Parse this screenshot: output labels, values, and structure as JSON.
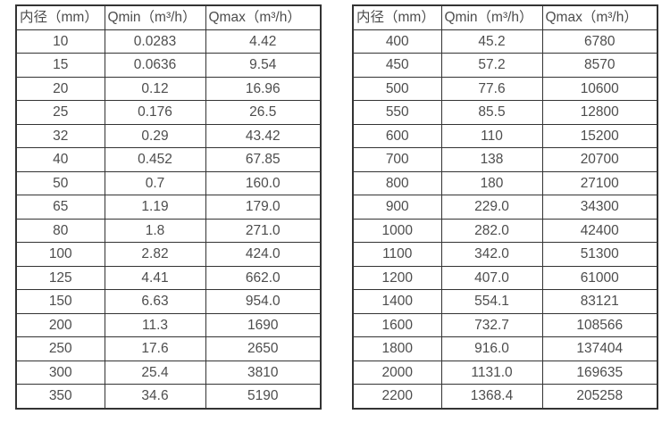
{
  "page": {
    "description": "Flow meter diameter vs minimum and maximum flow rate specification tables",
    "background": "#ffffff"
  },
  "colors": {
    "border": "#333333",
    "text": "#4d4d4d"
  },
  "tables": [
    {
      "name": "small-diameter-flow-table",
      "headers": [
        "内径（mm）",
        "Qmin（m³/h）",
        "Qmax（m³/h）"
      ],
      "rows": [
        [
          "10",
          "0.0283",
          "4.42"
        ],
        [
          "15",
          "0.0636",
          "9.54"
        ],
        [
          "20",
          "0.12",
          "16.96"
        ],
        [
          "25",
          "0.176",
          "26.5"
        ],
        [
          "32",
          "0.29",
          "43.42"
        ],
        [
          "40",
          "0.452",
          "67.85"
        ],
        [
          "50",
          "0.7",
          "160.0"
        ],
        [
          "65",
          "1.19",
          "179.0"
        ],
        [
          "80",
          "1.8",
          "271.0"
        ],
        [
          "100",
          "2.82",
          "424.0"
        ],
        [
          "125",
          "4.41",
          "662.0"
        ],
        [
          "150",
          "6.63",
          "954.0"
        ],
        [
          "200",
          "11.3",
          "1690"
        ],
        [
          "250",
          "17.6",
          "2650"
        ],
        [
          "300",
          "25.4",
          "3810"
        ],
        [
          "350",
          "34.6",
          "5190"
        ]
      ]
    },
    {
      "name": "large-diameter-flow-table",
      "headers": [
        "内径（mm）",
        "Qmin（m³/h）",
        "Qmax（m³/h）"
      ],
      "rows": [
        [
          "400",
          "45.2",
          "6780"
        ],
        [
          "450",
          "57.2",
          "8570"
        ],
        [
          "500",
          "77.6",
          "10600"
        ],
        [
          "550",
          "85.5",
          "12800"
        ],
        [
          "600",
          "110",
          "15200"
        ],
        [
          "700",
          "138",
          "20700"
        ],
        [
          "800",
          "180",
          "27100"
        ],
        [
          "900",
          "229.0",
          "34300"
        ],
        [
          "1000",
          "282.0",
          "42400"
        ],
        [
          "1100",
          "342.0",
          "51300"
        ],
        [
          "1200",
          "407.0",
          "61000"
        ],
        [
          "1400",
          "554.1",
          "83121"
        ],
        [
          "1600",
          "732.7",
          "108566"
        ],
        [
          "1800",
          "916.0",
          "137404"
        ],
        [
          "2000",
          "1131.0",
          "169635"
        ],
        [
          "2200",
          "1368.4",
          "205258"
        ]
      ]
    }
  ]
}
